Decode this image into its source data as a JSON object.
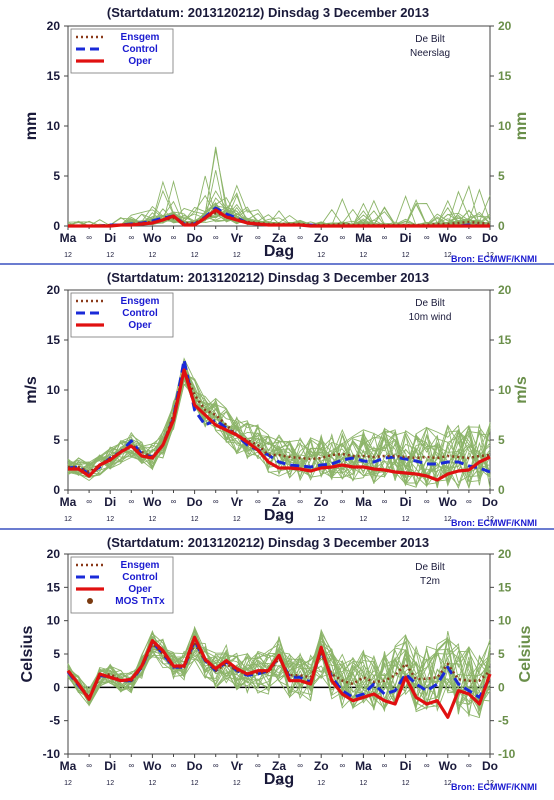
{
  "colors": {
    "ensemble_member": "#8db56a",
    "ensgem": "#8b3a1a",
    "control": "#1a2ad8",
    "oper": "#e01010",
    "mos": "#7a3a10",
    "divider": "#3a50c0",
    "zero_line": "#000000"
  },
  "x_axis": {
    "label": "Dag",
    "day_labels": [
      "Ma",
      "Di",
      "Wo",
      "Do",
      "Vr",
      "Za",
      "Zo",
      "Ma",
      "Di",
      "Wo",
      "Do"
    ],
    "day_positions": [
      0,
      2,
      4,
      6,
      8,
      10,
      12,
      14,
      16,
      18,
      20
    ],
    "hour_00_marker": "∞",
    "hour_12_label": "12"
  },
  "source": "Bron: ECMWF/KNMI",
  "chart_data": [
    {
      "type": "line",
      "title": "(Startdatum: 2013120212)   Dinsdag   3 December  2013",
      "location": "De Bilt",
      "parameter": "Neerslag",
      "ylabel": "mm",
      "ylim": [
        0,
        20
      ],
      "yticks": [
        0,
        5,
        10,
        15,
        20
      ],
      "x": [
        0,
        0.5,
        1,
        1.5,
        2,
        2.5,
        3,
        3.5,
        4,
        4.5,
        5,
        5.5,
        6,
        6.5,
        7,
        7.5,
        8,
        8.5,
        9,
        9.5,
        10,
        10.5,
        11,
        11.5,
        12,
        12.5,
        13,
        13.5,
        14,
        14.5,
        15,
        15.5,
        16,
        16.5,
        17,
        17.5,
        18,
        18.5,
        19,
        19.5,
        20
      ],
      "legend": [
        "Ensgem",
        "Control",
        "Oper"
      ],
      "series": [
        {
          "name": "Ensgem",
          "values": [
            0,
            0,
            0,
            0,
            0.1,
            0.1,
            0.2,
            0.3,
            0.4,
            0.6,
            0.8,
            0.3,
            0.3,
            0.8,
            1.3,
            1.0,
            0.7,
            0.4,
            0.3,
            0.2,
            0.2,
            0.2,
            0.2,
            0.1,
            0.1,
            0.1,
            0.2,
            0.1,
            0.1,
            0.1,
            0.1,
            0.1,
            0.1,
            0.1,
            0.1,
            0.2,
            0.2,
            0.3,
            0.4,
            0.3,
            0.2
          ]
        },
        {
          "name": "Control",
          "values": [
            0,
            0,
            0,
            0,
            0.1,
            0.1,
            0.2,
            0.3,
            0.5,
            0.8,
            1.0,
            0.2,
            0.2,
            0.9,
            1.8,
            1.2,
            0.8,
            0.3,
            0.2,
            0.1,
            0.1,
            0.1,
            0.1,
            0.1,
            0,
            0,
            0,
            0,
            0,
            0,
            0,
            0,
            0,
            0,
            0,
            0,
            0,
            0,
            0.1,
            0,
            0
          ]
        },
        {
          "name": "Oper",
          "values": [
            0,
            0,
            0,
            0,
            0,
            0.1,
            0.1,
            0.2,
            0.3,
            0.6,
            1.0,
            0.1,
            0.1,
            0.8,
            1.6,
            0.9,
            0.6,
            0.3,
            0.2,
            0.1,
            0.1,
            0.1,
            0.1,
            0,
            0,
            0,
            0,
            0,
            0,
            0,
            0,
            0,
            0,
            0,
            0,
            0,
            0,
            0,
            0,
            0,
            0
          ]
        }
      ]
    },
    {
      "type": "line",
      "title": "(Startdatum: 2013120212)   Dinsdag   3 December  2013",
      "location": "De Bilt",
      "parameter": "10m wind",
      "ylabel": "m/s",
      "ylim": [
        0,
        20
      ],
      "yticks": [
        0,
        5,
        10,
        15,
        20
      ],
      "x": [
        0,
        0.5,
        1,
        1.5,
        2,
        2.5,
        3,
        3.5,
        4,
        4.5,
        5,
        5.5,
        6,
        6.5,
        7,
        7.5,
        8,
        8.5,
        9,
        9.5,
        10,
        10.5,
        11,
        11.5,
        12,
        12.5,
        13,
        13.5,
        14,
        14.5,
        15,
        15.5,
        16,
        16.5,
        17,
        17.5,
        18,
        18.5,
        19,
        19.5,
        20
      ],
      "legend": [
        "Ensgem",
        "Control",
        "Oper"
      ],
      "series": [
        {
          "name": "Ensgem",
          "values": [
            2.3,
            2.3,
            1.8,
            2.5,
            3.2,
            3.8,
            4.5,
            3.8,
            3.3,
            4.5,
            7.5,
            12.0,
            9.5,
            8.0,
            7.5,
            6.5,
            5.5,
            5.0,
            4.5,
            3.5,
            3.5,
            3.3,
            3.2,
            3.1,
            3.2,
            3.5,
            3.6,
            3.4,
            3.4,
            3.3,
            3.4,
            3.4,
            3.3,
            3.2,
            3.3,
            3.2,
            3.4,
            3.3,
            3.2,
            3.4,
            3.5
          ]
        },
        {
          "name": "Control",
          "values": [
            2.2,
            2.3,
            1.6,
            2.3,
            3.2,
            3.8,
            4.9,
            3.6,
            3.3,
            4.5,
            7.2,
            13.0,
            8.0,
            6.5,
            7.0,
            6.2,
            5.5,
            4.5,
            4.0,
            3.5,
            2.8,
            2.5,
            2.4,
            2.3,
            2.5,
            2.6,
            3.0,
            3.2,
            2.9,
            2.8,
            3.2,
            3.3,
            3.1,
            2.9,
            2.6,
            2.6,
            2.8,
            2.8,
            2.4,
            2.2,
            1.8
          ]
        },
        {
          "name": "Oper",
          "values": [
            2.1,
            2.1,
            1.4,
            2.5,
            3.0,
            3.8,
            4.4,
            3.4,
            3.2,
            4.5,
            7.0,
            12.0,
            8.5,
            7.5,
            6.5,
            6.0,
            5.5,
            4.8,
            4.0,
            2.8,
            2.2,
            2.2,
            2.1,
            1.9,
            2.2,
            2.3,
            2.5,
            2.3,
            2.3,
            2.1,
            2.0,
            1.8,
            1.7,
            1.6,
            1.4,
            1.0,
            1.6,
            1.9,
            2.0,
            2.8,
            3.3
          ]
        }
      ]
    },
    {
      "type": "line",
      "title": "(Startdatum: 2013120212)   Dinsdag   3 December  2013",
      "location": "De Bilt",
      "parameter": "T2m",
      "ylabel": "Celsius",
      "ylim": [
        -10,
        20
      ],
      "yticks": [
        -10,
        -5,
        0,
        5,
        10,
        15,
        20
      ],
      "x": [
        0,
        0.5,
        1,
        1.5,
        2,
        2.5,
        3,
        3.5,
        4,
        4.5,
        5,
        5.5,
        6,
        6.5,
        7,
        7.5,
        8,
        8.5,
        9,
        9.5,
        10,
        10.5,
        11,
        11.5,
        12,
        12.5,
        13,
        13.5,
        14,
        14.5,
        15,
        15.5,
        16,
        16.5,
        17,
        17.5,
        18,
        18.5,
        19,
        19.5,
        20
      ],
      "legend": [
        "Ensgem",
        "Control",
        "Oper",
        "MOS TnTx"
      ],
      "series": [
        {
          "name": "Ensgem",
          "values": [
            2.5,
            0.5,
            -1.5,
            1.5,
            2.0,
            1.0,
            1.0,
            3.0,
            6.5,
            5.0,
            3.0,
            3.0,
            6.5,
            4.0,
            2.5,
            3.5,
            2.5,
            2.0,
            2.2,
            2.3,
            4.3,
            1.8,
            1.8,
            1.5,
            5.0,
            2.0,
            1.0,
            0.5,
            1.5,
            0.8,
            1.0,
            1.8,
            3.5,
            1.2,
            1.3,
            1.5,
            3.5,
            1.2,
            1.0,
            1.0,
            2.5
          ]
        },
        {
          "name": "Control",
          "values": [
            2.3,
            0.3,
            -1.6,
            1.8,
            1.5,
            1.0,
            1.0,
            3.0,
            6.8,
            5.0,
            3.0,
            3.0,
            7.0,
            4.0,
            2.5,
            3.8,
            2.5,
            1.8,
            2.0,
            2.5,
            4.6,
            1.5,
            1.5,
            0.8,
            5.5,
            1.5,
            -0.5,
            -1.5,
            -1.0,
            0.5,
            -1.0,
            -0.5,
            2.0,
            0.5,
            -0.5,
            0.5,
            3.0,
            0.5,
            -0.5,
            -1.5,
            1.5
          ]
        },
        {
          "name": "Oper",
          "values": [
            2.5,
            0.5,
            -1.8,
            2.0,
            1.5,
            1.0,
            1.2,
            3.2,
            7.0,
            5.5,
            3.2,
            3.2,
            7.5,
            4.2,
            2.8,
            4.0,
            2.8,
            2.0,
            2.5,
            2.5,
            4.8,
            1.0,
            1.0,
            0.5,
            6.0,
            1.0,
            -1.0,
            -2.0,
            -1.5,
            -1.0,
            -2.0,
            -2.5,
            1.5,
            -1.5,
            -2.5,
            -2.0,
            -4.5,
            -0.5,
            -1.0,
            -2.5,
            2.0
          ]
        }
      ]
    }
  ]
}
